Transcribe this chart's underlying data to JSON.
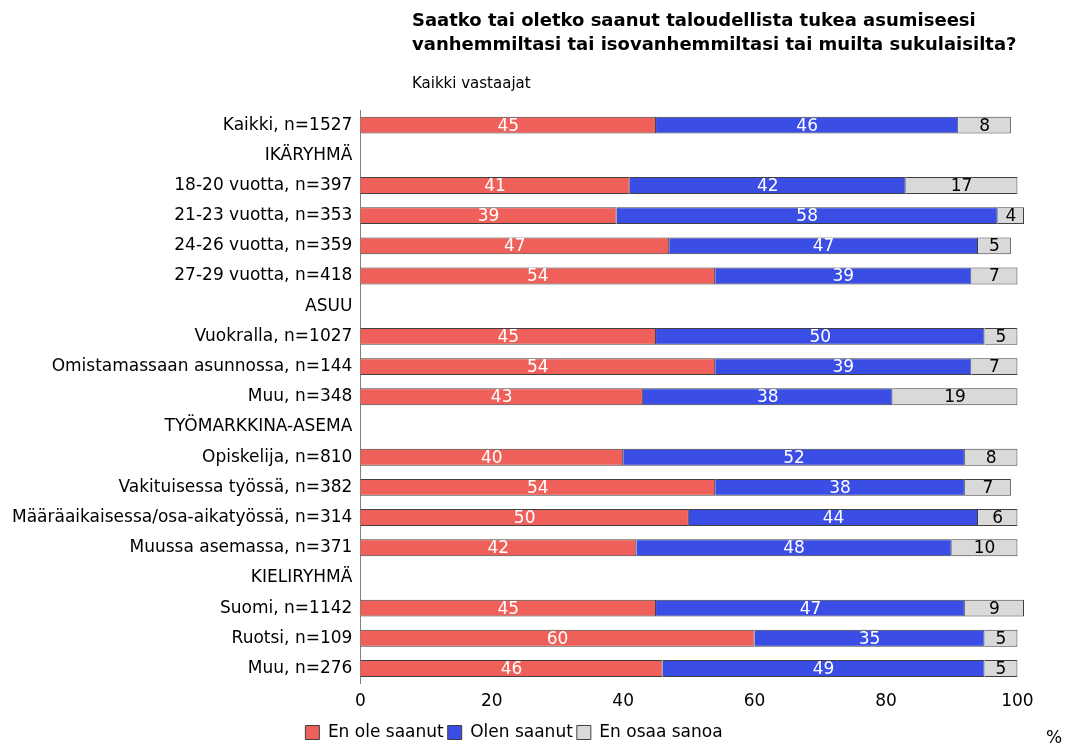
{
  "chart_data": {
    "type": "bar",
    "orientation": "horizontal",
    "stacked": true,
    "title": "Saatko tai oletko saanut taloudellista tukea asumiseesi vanhemmiltasi tai isovanhemmiltasi tai muilta sukulaisilta?",
    "subtitle": "Kaikki vastaajat",
    "xlabel": "%",
    "categories": [
      "Kaikki, n=1527",
      "IKÄRYHMÄ",
      "18-20 vuotta, n=397",
      "21-23 vuotta, n=353",
      "24-26 vuotta, n=359",
      "27-29 vuotta, n=418",
      "ASUU",
      "Vuokralla, n=1027",
      "Omistamassaan asunnossa, n=144",
      "Muu, n=348",
      "TYÖMARKKINA-ASEMA",
      "Opiskelija, n=810",
      "Vakituisessa työssä, n=382",
      "Määräaikaisessa/osa-aikatyössä, n=314",
      "Muussa asemassa, n=371",
      "KIELIRYHMÄ",
      "Suomi, n=1142",
      "Ruotsi, n=109",
      "Muu, n=276"
    ],
    "series": [
      {
        "name": "En ole saanut",
        "color": "#f0605a",
        "values": [
          45,
          null,
          41,
          39,
          47,
          54,
          null,
          45,
          54,
          43,
          null,
          40,
          54,
          50,
          42,
          null,
          45,
          60,
          46
        ]
      },
      {
        "name": "Olen saanut",
        "color": "#3a4ee6",
        "values": [
          46,
          null,
          42,
          58,
          47,
          39,
          null,
          50,
          39,
          38,
          null,
          52,
          38,
          44,
          48,
          null,
          47,
          35,
          49
        ]
      },
      {
        "name": "En osaa sanoa",
        "color": "#d9d9d9",
        "values": [
          8,
          null,
          17,
          4,
          5,
          7,
          null,
          5,
          7,
          19,
          null,
          8,
          7,
          6,
          10,
          null,
          9,
          5,
          5
        ]
      }
    ],
    "xlim": [
      0,
      101
    ],
    "xticks": [
      0,
      20,
      40,
      60,
      80,
      100
    ],
    "grid": false,
    "legend": "bottom",
    "data_labels": true
  }
}
